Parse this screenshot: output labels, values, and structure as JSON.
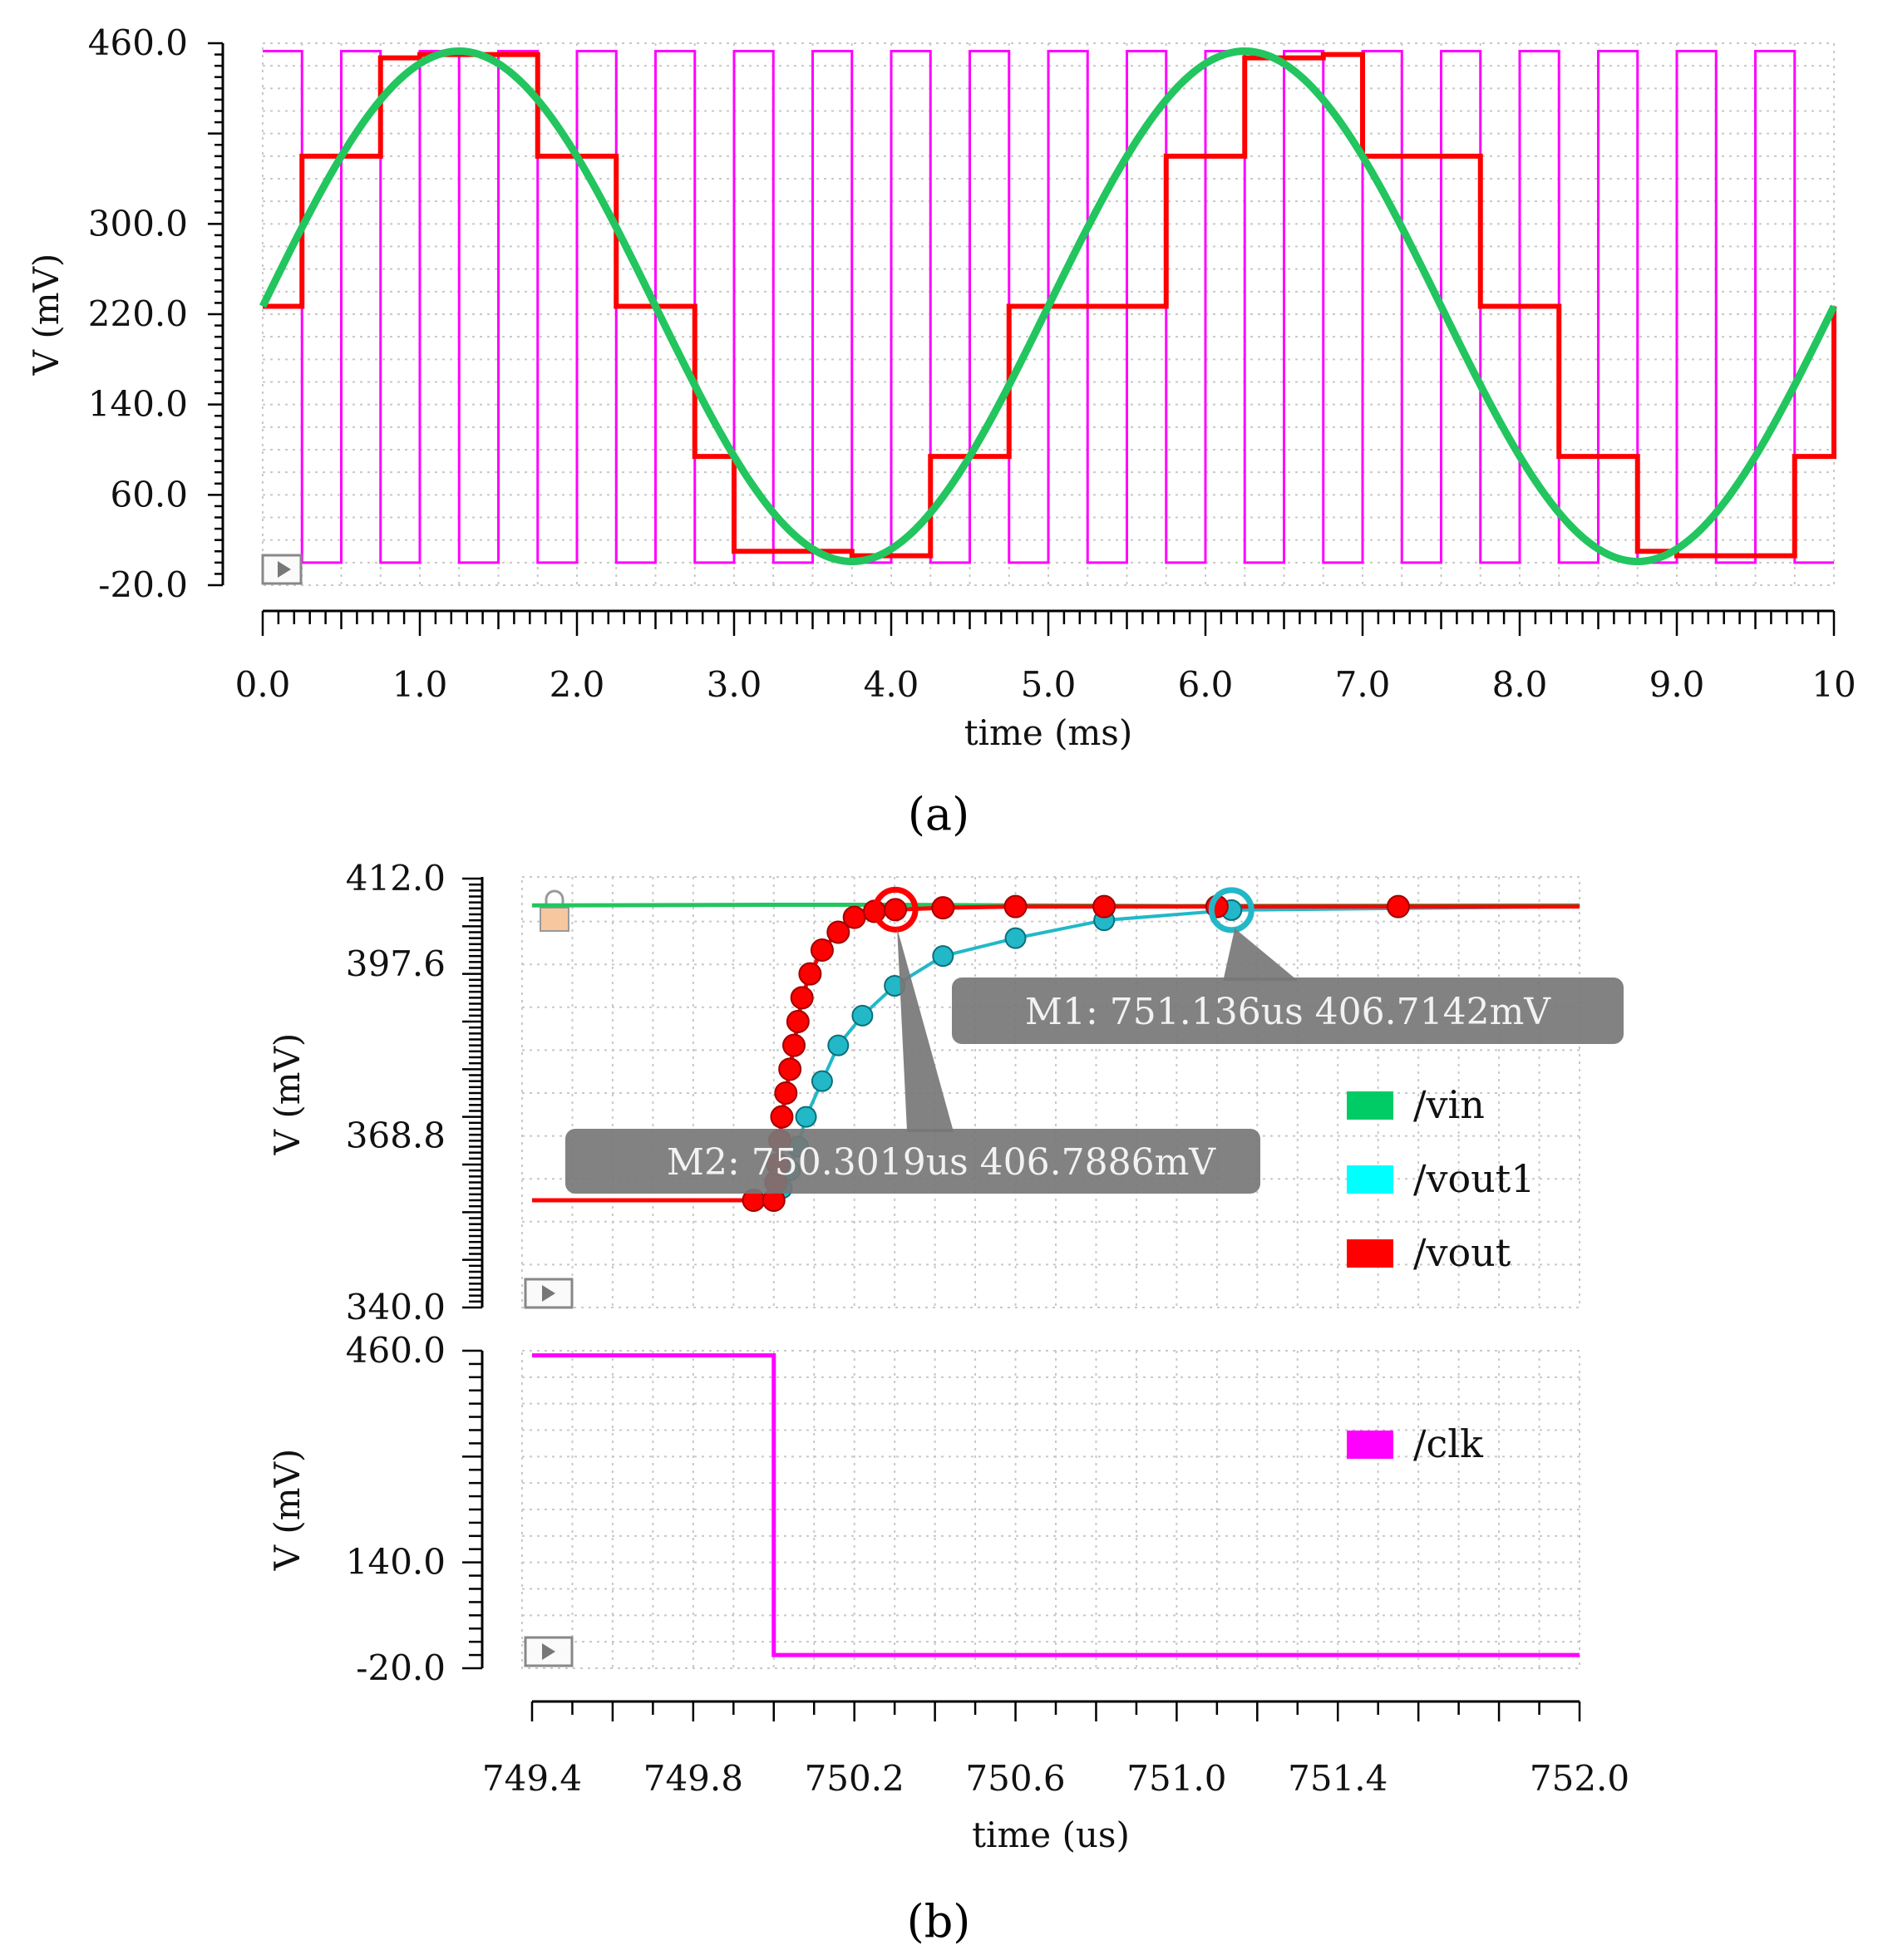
{
  "colors": {
    "vin": "#22c55e",
    "vin_legend": "#00cc66",
    "vout": "#ff0000",
    "vout1": "#22b8c8",
    "vout1_legend": "#00ffff",
    "clk": "#ff00ff",
    "grid": "#c8c8c8",
    "marker_box": "#777777"
  },
  "chart_data": [
    {
      "id": "a",
      "type": "line",
      "panel_label": "(a)",
      "xlabel": "time (ms)",
      "ylabel": "V (mV)",
      "xlim": [
        0,
        10
      ],
      "ylim": [
        -20,
        460
      ],
      "xticks": [
        0,
        1,
        2,
        3,
        4,
        5,
        6,
        7,
        8,
        9,
        10
      ],
      "xtick_labels": [
        "0.0",
        "1.0",
        "2.0",
        "3.0",
        "4.0",
        "5.0",
        "6.0",
        "7.0",
        "8.0",
        "9.0",
        "10"
      ],
      "yticks": [
        -20,
        60,
        140,
        220,
        300,
        460
      ],
      "ytick_labels": [
        "-20.0",
        "60.0",
        "140.0",
        "220.0",
        "300.0",
        "460.0"
      ],
      "series": [
        {
          "name": "clk",
          "kind": "square",
          "color_key": "clk",
          "period_ms": 0.5,
          "duty": 0.5,
          "start_ms": 0.0,
          "high": 453,
          "low": 0
        },
        {
          "name": "vin",
          "kind": "sine",
          "color_key": "vin",
          "offset": 227,
          "amplitude": 226,
          "period_ms": 5.0,
          "phase_ms": 0.0
        },
        {
          "name": "vout",
          "kind": "step",
          "color_key": "vout",
          "x": [
            0.0,
            0.25,
            0.75,
            1.0,
            1.75,
            2.25,
            2.75,
            3.0,
            3.75,
            4.25,
            4.75,
            5.0,
            5.75,
            6.25,
            6.75,
            7.0,
            7.75,
            8.25,
            8.75,
            9.0,
            9.75,
            10.0
          ],
          "y": [
            227,
            360,
            447,
            450,
            360,
            227,
            94,
            10,
            6,
            94,
            227,
            227,
            360,
            447,
            450,
            360,
            227,
            94,
            10,
            6,
            94,
            227
          ]
        }
      ]
    },
    {
      "id": "b_top",
      "type": "line",
      "xlim": [
        749.4,
        752.0
      ],
      "ylim": [
        340,
        412
      ],
      "ylabel": "V (mV)",
      "yticks": [
        340,
        368.8,
        397.6,
        412
      ],
      "ytick_labels": [
        "340.0",
        "368.8",
        "397.6",
        "412.0"
      ],
      "legend": [
        "/vin",
        "/vout1",
        "/vout"
      ],
      "legend_position": "right",
      "series": [
        {
          "name": "/vin",
          "color_key": "vin",
          "x": [
            749.4,
            750.0,
            750.3,
            751.0,
            752.0
          ],
          "y": [
            407.5,
            407.6,
            407.6,
            407.4,
            407.5
          ]
        },
        {
          "name": "/vout1",
          "color_key": "vout1",
          "markers": true,
          "x": [
            749.4,
            749.95,
            750.0,
            750.02,
            750.04,
            750.06,
            750.08,
            750.12,
            750.16,
            750.22,
            750.3,
            750.42,
            750.6,
            750.82,
            751.136,
            752.0
          ],
          "y": [
            358,
            358,
            358,
            360,
            363,
            367,
            372,
            378,
            384,
            389,
            394,
            399,
            402,
            405,
            406.7142,
            407.3
          ]
        },
        {
          "name": "/vout",
          "color_key": "vout",
          "markers": true,
          "x": [
            749.4,
            749.95,
            750.0,
            750.005,
            750.01,
            750.015,
            750.02,
            750.03,
            750.04,
            750.05,
            750.06,
            750.07,
            750.09,
            750.12,
            750.16,
            750.2,
            750.25,
            750.3019,
            750.42,
            750.6,
            750.82,
            751.1,
            751.55,
            752.0
          ],
          "y": [
            358,
            358,
            358,
            361,
            364,
            368,
            372,
            376,
            380,
            384,
            388,
            392,
            396,
            400,
            403,
            405.5,
            406.5,
            406.7886,
            407.1,
            407.3,
            407.3,
            407.3,
            407.3,
            407.3
          ]
        }
      ],
      "markers": [
        {
          "label": "M1: 751.136us 406.7142mV",
          "x": 751.136,
          "y": 406.7142,
          "color_key": "vout1"
        },
        {
          "label": "M2: 750.3019us 406.7886mV",
          "x": 750.3019,
          "y": 406.7886,
          "color_key": "vout"
        }
      ]
    },
    {
      "id": "b_bottom",
      "type": "line",
      "panel_label": "(b)",
      "xlabel": "time (us)",
      "ylabel": "V (mV)",
      "xlim": [
        749.4,
        752.0
      ],
      "ylim": [
        -20,
        460
      ],
      "xticks": [
        749.4,
        749.8,
        750.2,
        750.6,
        751.0,
        751.4,
        752.0
      ],
      "xtick_labels": [
        "749.4",
        "749.8",
        "750.2",
        "750.6",
        "751.0",
        "751.4",
        "752.0"
      ],
      "yticks": [
        -20,
        140,
        460
      ],
      "ytick_labels": [
        "-20.0",
        "140.0",
        "460.0"
      ],
      "legend": [
        "/clk"
      ],
      "legend_position": "right",
      "series": [
        {
          "name": "/clk",
          "color_key": "clk",
          "x": [
            749.4,
            750.0,
            750.0,
            752.0
          ],
          "y": [
            453,
            453,
            0,
            0
          ]
        }
      ]
    }
  ]
}
